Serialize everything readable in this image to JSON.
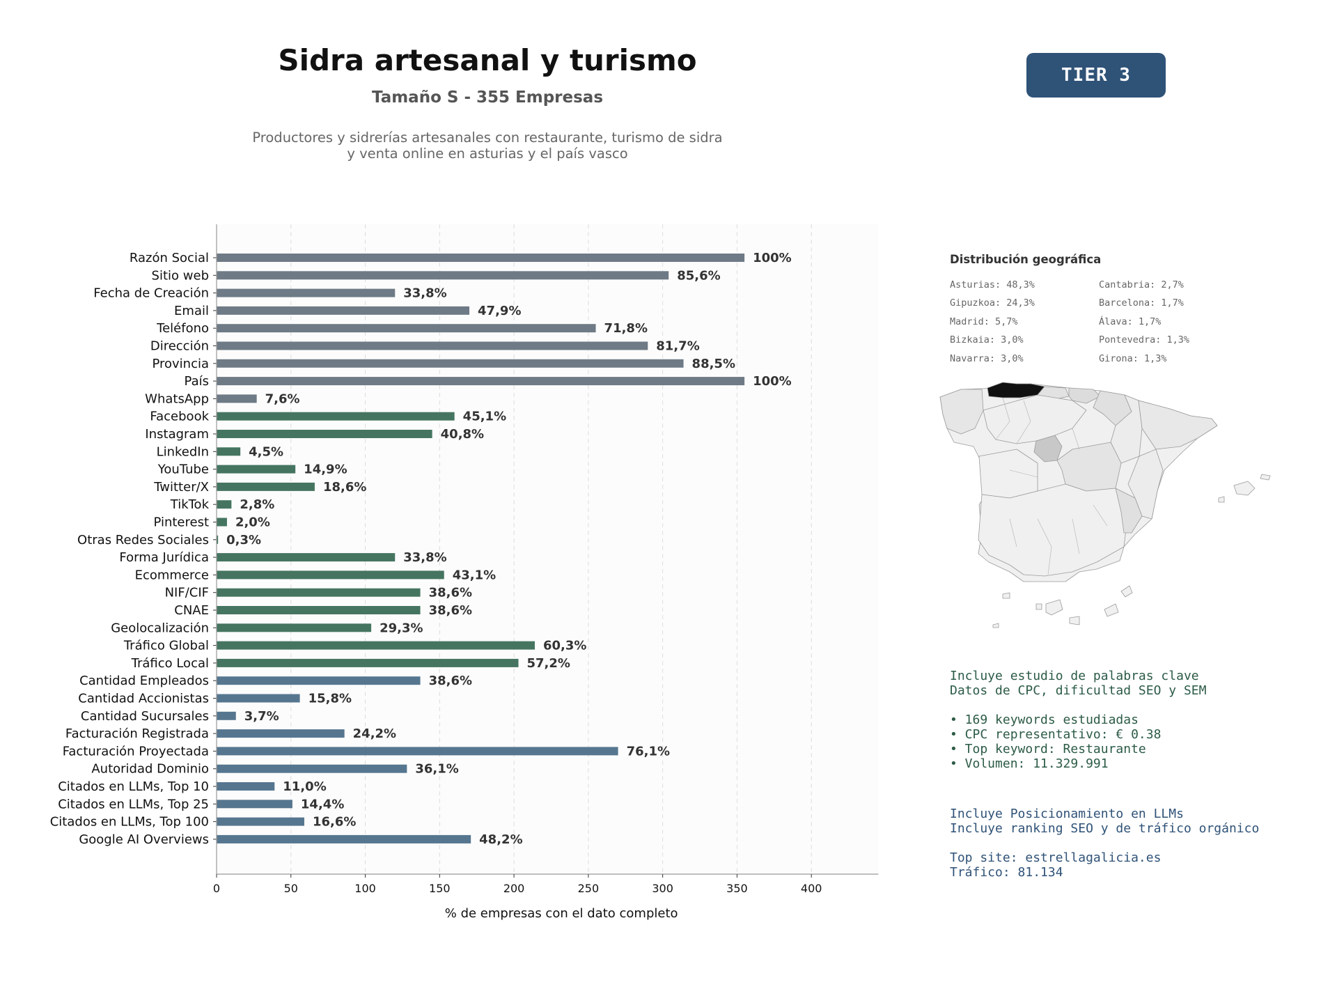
{
  "header": {
    "title": "Sidra artesanal y turismo",
    "subtitle": "Tamaño S - 355 Empresas",
    "description_line1": "Productores y sidrerías artesanales con restaurante, turismo de sidra",
    "description_line2": "y venta online en asturias y el país vasco",
    "tier": "TIER 3"
  },
  "chart_data": {
    "type": "bar",
    "orientation": "horizontal",
    "xlabel": "% de empresas con el dato completo",
    "xlim": [
      0,
      445
    ],
    "xticks": [
      0,
      50,
      100,
      150,
      200,
      250,
      300,
      350,
      400
    ],
    "grid": "vertical dashed",
    "categories": [
      "Razón Social",
      "Sitio web",
      "Fecha de Creación",
      "Email",
      "Teléfono",
      "Dirección",
      "Provincia",
      "País",
      "WhatsApp",
      "Facebook",
      "Instagram",
      "LinkedIn",
      "YouTube",
      "Twitter/X",
      "TikTok",
      "Pinterest",
      "Otras Redes Sociales",
      "Forma Jurídica",
      "Ecommerce",
      "NIF/CIF",
      "CNAE",
      "Geolocalización",
      "Tráfico Global",
      "Tráfico Local",
      "Cantidad Empleados",
      "Cantidad Accionistas",
      "Cantidad Sucursales",
      "Facturación Registrada",
      "Facturación Proyectada",
      "Autoridad Dominio",
      "Citados en LLMs, Top 10",
      "Citados en LLMs, Top 25",
      "Citados en LLMs, Top 100",
      "Google AI Overviews"
    ],
    "values": [
      355,
      304,
      120,
      170,
      255,
      290,
      314,
      355,
      27,
      160,
      145,
      16,
      53,
      66,
      10,
      7,
      1,
      120,
      153,
      137,
      137,
      104,
      214,
      203,
      137,
      56,
      13,
      86,
      270,
      128,
      39,
      51,
      59,
      171
    ],
    "labels": [
      "100%",
      "85,6%",
      "33,8%",
      "47,9%",
      "71,8%",
      "81,7%",
      "88,5%",
      "100%",
      "7,6%",
      "45,1%",
      "40,8%",
      "4,5%",
      "14,9%",
      "18,6%",
      "2,8%",
      "2,0%",
      "0,3%",
      "33,8%",
      "43,1%",
      "38,6%",
      "38,6%",
      "29,3%",
      "60,3%",
      "57,2%",
      "38,6%",
      "15,8%",
      "3,7%",
      "24,2%",
      "76,1%",
      "36,1%",
      "11,0%",
      "14,4%",
      "16,6%",
      "48,2%"
    ],
    "bar_colors": [
      "#6e7a85",
      "#6e7a85",
      "#6e7a85",
      "#6e7a85",
      "#6e7a85",
      "#6e7a85",
      "#6e7a85",
      "#6e7a85",
      "#6e7a85",
      "#457560",
      "#457560",
      "#457560",
      "#457560",
      "#457560",
      "#457560",
      "#457560",
      "#457560",
      "#457560",
      "#457560",
      "#457560",
      "#457560",
      "#457560",
      "#457560",
      "#457560",
      "#56768f",
      "#56768f",
      "#56768f",
      "#56768f",
      "#56768f",
      "#56768f",
      "#56768f",
      "#56768f",
      "#56768f",
      "#56768f"
    ]
  },
  "geo": {
    "title": "Distribución geográfica",
    "items": [
      "Asturias: 48,3%",
      "Gipuzkoa: 24,3%",
      "Madrid: 5,7%",
      "Bizkaia: 3,0%",
      "Navarra: 3,0%",
      "Cantabria: 2,7%",
      "Barcelona: 1,7%",
      "Álava: 1,7%",
      "Pontevedra: 1,3%",
      "Girona: 1,3%"
    ],
    "highlight_color": "#111111",
    "map_fill": "#f0f0f0"
  },
  "keywords": {
    "line1": "Incluye estudio de palabras clave",
    "line2": "Datos de CPC, dificultad SEO y SEM",
    "bullet1": "• 169 keywords estudiadas",
    "bullet2": "• CPC representativo: € 0.38",
    "bullet3": "• Top keyword: Restaurante",
    "bullet4": "• Volumen: 11.329.991"
  },
  "llm": {
    "line1": "Incluye Posicionamiento en LLMs",
    "line2": "Incluye ranking SEO y de tráfico orgánico",
    "top_site": "Top site: estrellagalicia.es",
    "traffic": "Tráfico: 81.134"
  }
}
